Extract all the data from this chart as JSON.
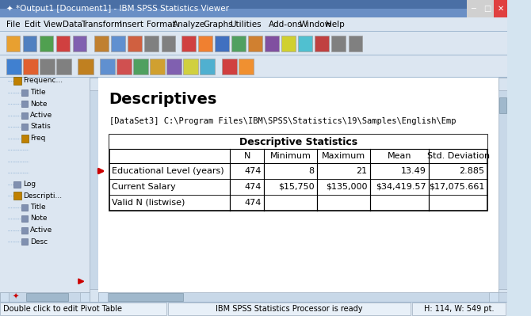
{
  "title_bar": "*Output1 [Document1] - IBM SPSS Statistics Viewer",
  "menu_items": [
    "File",
    "Edit",
    "View",
    "Data",
    "Transform",
    "Insert",
    "Format",
    "Analyze",
    "Graphs",
    "Utilities",
    "Add-ons",
    "Window",
    "Help"
  ],
  "nav_tree": [
    "Frequenc...",
    "Title",
    "Note",
    "Active",
    "Statis",
    "Freq",
    "Log",
    "Descripti...",
    "Title",
    "Note",
    "Active",
    "Desc"
  ],
  "section_title": "Descriptives",
  "dataset_label": "[DataSet3] C:\\Program Files\\IBM\\SPSS\\Statistics\\19\\Samples\\English\\Emp",
  "table_title": "Descriptive Statistics",
  "col_headers": [
    "",
    "N",
    "Minimum",
    "Maximum",
    "Mean",
    "Std. Deviation"
  ],
  "rows": [
    [
      "Educational Level (years)",
      "474",
      "8",
      "21",
      "13.49",
      "2.885"
    ],
    [
      "Current Salary",
      "474",
      "$15,750",
      "$135,000",
      "$34,419.57",
      "$17,075.661"
    ],
    [
      "Valid N (listwise)",
      "474",
      "",
      "",
      "",
      ""
    ]
  ],
  "status_bar_left": "Double click to edit Pivot Table",
  "status_bar_mid": "IBM SPSS Statistics Processor is ready",
  "status_bar_right": "H: 114, W: 549 pt.",
  "bg_color": "#d4e4f0",
  "content_bg": "#ffffff",
  "title_bar_bg": "#1e4b8e",
  "menu_bg": "#dce6f1",
  "table_header_bg": "#ffffff",
  "border_color": "#000000",
  "tree_bg": "#dce6f1",
  "scrollbar_color": "#c0d0e0",
  "red_arrow_color": "#cc0000"
}
